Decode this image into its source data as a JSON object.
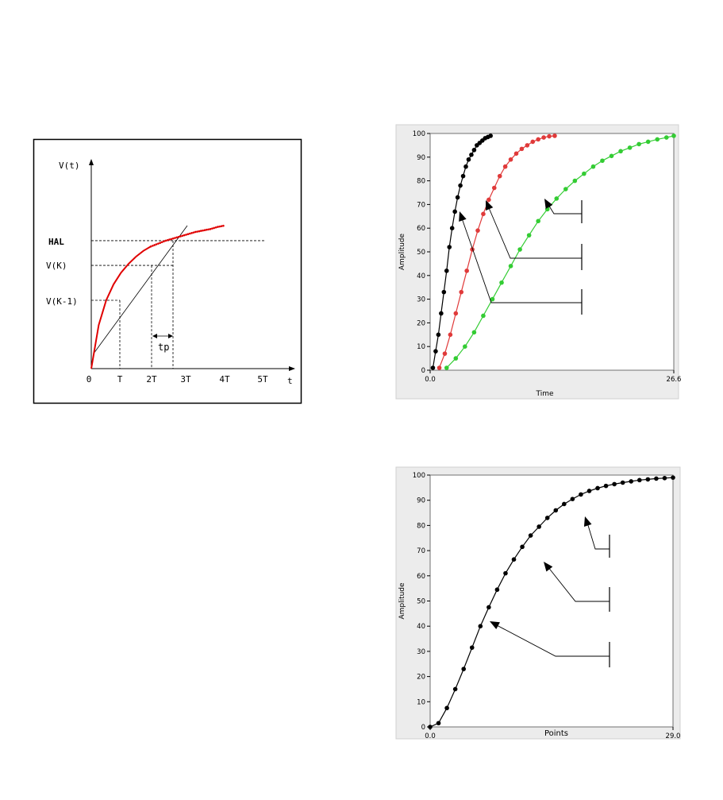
{
  "chart_data": [
    {
      "type": "line",
      "title": "",
      "ylabel": "V(t)",
      "xlabel": "t",
      "x_tick_labels": [
        "0",
        "T",
        "2T",
        "3T",
        "4T",
        "5T"
      ],
      "y_level_labels": [
        "HAL",
        "V(K)",
        "V(K-1)"
      ],
      "annotation": "tp",
      "series": [
        {
          "color": "#e00000",
          "x": [
            0,
            0.25,
            0.5,
            0.75,
            1.0,
            1.25,
            1.5,
            1.75,
            2.0,
            2.25,
            2.5,
            2.75,
            3.0,
            3.25,
            3.5,
            3.75,
            4.0,
            4.25,
            4.5
          ],
          "y": [
            0,
            0.3,
            0.47,
            0.58,
            0.66,
            0.72,
            0.77,
            0.81,
            0.84,
            0.86,
            0.88,
            0.895,
            0.91,
            0.925,
            0.94,
            0.95,
            0.96,
            0.975,
            0.985
          ]
        }
      ],
      "colors": {
        "curve": "#e00000",
        "tangent": "#000000"
      }
    },
    {
      "type": "line",
      "title": "",
      "xlabel": "Time",
      "ylabel": "Amplitude",
      "xlim": [
        0.0,
        26.6
      ],
      "ylim": [
        0,
        100
      ],
      "x_tick_labels": [
        "0.0",
        "26.6"
      ],
      "y_tick_labels": [
        "0",
        "10",
        "20",
        "30",
        "40",
        "50",
        "60",
        "70",
        "80",
        "90",
        "100"
      ],
      "series": [
        {
          "color": "#000000",
          "x": [
            0.3,
            0.6,
            0.9,
            1.2,
            1.5,
            1.8,
            2.1,
            2.4,
            2.7,
            3.0,
            3.3,
            3.6,
            3.9,
            4.2,
            4.5,
            4.8,
            5.1,
            5.4,
            5.7,
            6.0,
            6.3,
            6.6
          ],
          "y": [
            1,
            8,
            15,
            24,
            33,
            42,
            52,
            60,
            67,
            73,
            78,
            82,
            86,
            89,
            91,
            93,
            95,
            96,
            97,
            98,
            98.5,
            99
          ]
        },
        {
          "color": "#e03a3a",
          "x": [
            1.0,
            1.6,
            2.2,
            2.8,
            3.4,
            4.0,
            4.6,
            5.2,
            5.8,
            6.4,
            7.0,
            7.6,
            8.2,
            8.8,
            9.4,
            10.0,
            10.6,
            11.2,
            11.8,
            12.4,
            13.0,
            13.6
          ],
          "y": [
            1,
            7,
            15,
            24,
            33,
            42,
            51,
            59,
            66,
            72,
            77,
            82,
            86,
            89,
            91.5,
            93.5,
            95,
            96.5,
            97.5,
            98.3,
            98.8,
            99
          ]
        },
        {
          "color": "#33cc33",
          "x": [
            1.8,
            2.8,
            3.8,
            4.8,
            5.8,
            6.8,
            7.8,
            8.8,
            9.8,
            10.8,
            11.8,
            12.8,
            13.8,
            14.8,
            15.8,
            16.8,
            17.8,
            18.8,
            19.8,
            20.8,
            21.8,
            22.8,
            23.8,
            24.8,
            25.8,
            26.6
          ],
          "y": [
            1,
            5,
            10,
            16,
            23,
            30,
            37,
            44,
            51,
            57,
            63,
            68,
            72.5,
            76.5,
            80,
            83,
            86,
            88.5,
            90.5,
            92.5,
            94,
            95.5,
            96.5,
            97.5,
            98.3,
            99
          ]
        }
      ],
      "arrows": 3
    },
    {
      "type": "line",
      "title": "",
      "xlabel": "Points",
      "ylabel": "Amplitude",
      "xlim": [
        0.0,
        29.0
      ],
      "ylim": [
        0,
        100
      ],
      "x_tick_labels": [
        "0.0",
        "29.0"
      ],
      "y_tick_labels": [
        "0",
        "10",
        "20",
        "30",
        "40",
        "50",
        "60",
        "70",
        "80",
        "90",
        "100"
      ],
      "series": [
        {
          "color": "#000000",
          "x": [
            0.0,
            1.0,
            2.0,
            3.0,
            4.0,
            5.0,
            6.0,
            7.0,
            8.0,
            9.0,
            10.0,
            11.0,
            12.0,
            13.0,
            14.0,
            15.0,
            16.0,
            17.0,
            18.0,
            19.0,
            20.0,
            21.0,
            22.0,
            23.0,
            24.0,
            25.0,
            26.0,
            27.0,
            28.0,
            29.0
          ],
          "y": [
            0,
            1.5,
            7.5,
            15,
            23,
            31.5,
            40,
            47.5,
            54.5,
            61,
            66.5,
            71.5,
            76,
            79.5,
            83,
            86,
            88.5,
            90.5,
            92.3,
            93.7,
            94.8,
            95.7,
            96.4,
            97,
            97.5,
            98,
            98.3,
            98.6,
            98.8,
            99
          ]
        }
      ],
      "arrows": 3
    }
  ]
}
